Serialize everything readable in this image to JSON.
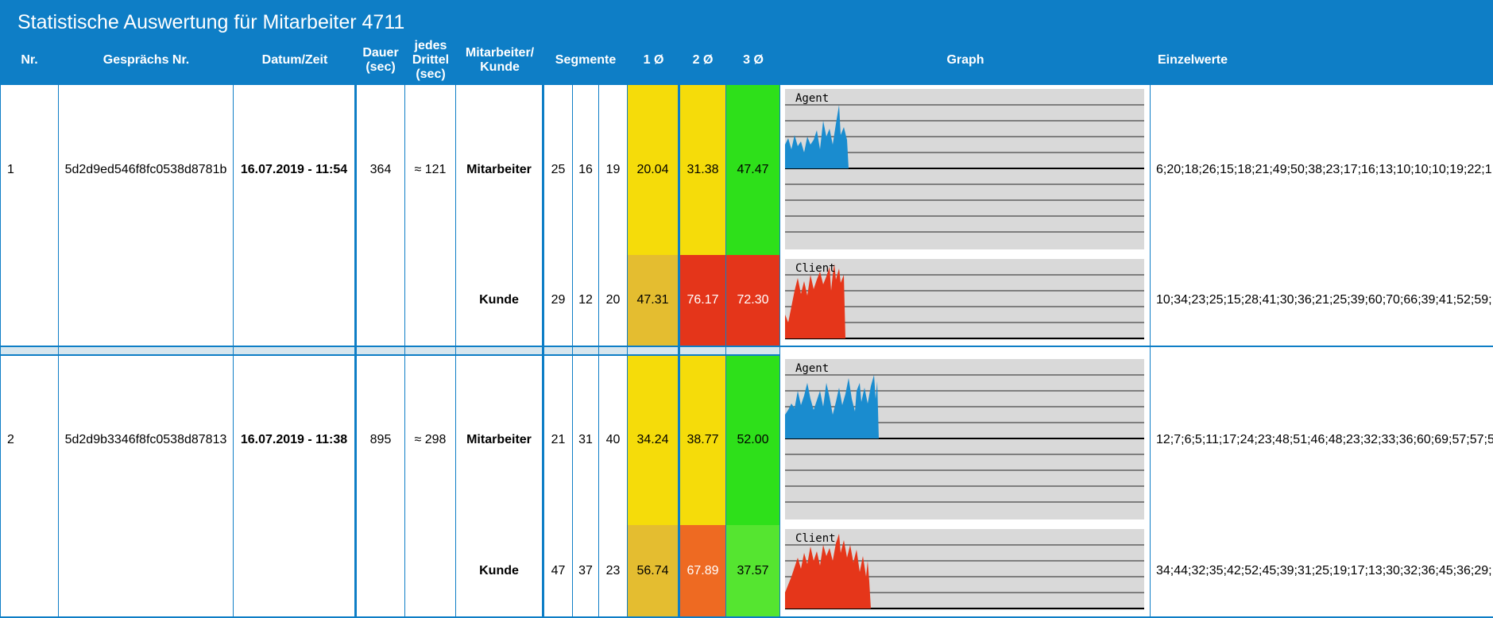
{
  "title": "Statistische Auswertung für Mitarbeiter 4711",
  "columns": {
    "nr": "Nr.",
    "gespraech": "Gesprächs Nr.",
    "datum": "Datum/Zeit",
    "dauer": "Dauer\n(sec)",
    "drittel": "jedes\nDrittel\n(sec)",
    "rolle": "Mitarbeiter/\nKunde",
    "segmente": "Segmente",
    "avg1": "1 Ø",
    "avg2": "2 Ø",
    "avg3": "3 Ø",
    "graph": "Graph",
    "einzelwerte": "Einzelwerte"
  },
  "colors": {
    "header": "#0e7ec6",
    "yellow": "#f5dc0a",
    "gold": "#e4bd30",
    "green": "#2ee01a",
    "lightgreen": "#55e530",
    "red": "#e4351a",
    "orange": "#ee6a22",
    "agent_series": "#1a8ccf",
    "client_series": "#e5361a"
  },
  "rows": [
    {
      "nr": "1",
      "gespraech": "5d2d9ed546f8fc0538d8781b",
      "datum": "16.07.2019 - 11:54",
      "dauer": "364",
      "drittel": "≈ 121",
      "sub": [
        {
          "rolle": "Mitarbeiter",
          "seg": [
            "25",
            "16",
            "19"
          ],
          "avg": [
            "20.04",
            "31.38",
            "47.47"
          ],
          "avg_colors": [
            "yellow",
            "yellow",
            "green"
          ],
          "graph_label": "Agent",
          "einzelwerte": "6;20;18;26;15;18;21;49;50;38;23;17;16;13;10;10;10;19;22;1"
        },
        {
          "rolle": "Kunde",
          "seg": [
            "29",
            "12",
            "20"
          ],
          "avg": [
            "47.31",
            "76.17",
            "72.30"
          ],
          "avg_colors": [
            "gold",
            "red",
            "red"
          ],
          "graph_label": "Client",
          "einzelwerte": "10;34;23;25;15;28;41;30;36;21;25;39;60;70;66;39;41;52;59;"
        }
      ]
    },
    {
      "nr": "2",
      "gespraech": "5d2d9b3346f8fc0538d87813",
      "datum": "16.07.2019 - 11:38",
      "dauer": "895",
      "drittel": "≈ 298",
      "sub": [
        {
          "rolle": "Mitarbeiter",
          "seg": [
            "21",
            "31",
            "40"
          ],
          "avg": [
            "34.24",
            "38.77",
            "52.00"
          ],
          "avg_colors": [
            "yellow",
            "yellow",
            "green"
          ],
          "graph_label": "Agent",
          "einzelwerte": "12;7;6;5;11;17;24;23;48;51;46;48;23;32;33;36;60;69;57;57;5"
        },
        {
          "rolle": "Kunde",
          "seg": [
            "47",
            "37",
            "23"
          ],
          "avg": [
            "56.74",
            "67.89",
            "37.57"
          ],
          "avg_colors": [
            "gold",
            "orange",
            "lightgreen"
          ],
          "graph_label": "Client",
          "einzelwerte": "34;44;32;35;42;52;45;39;31;25;19;17;13;30;32;36;45;36;29;"
        }
      ]
    }
  ]
}
